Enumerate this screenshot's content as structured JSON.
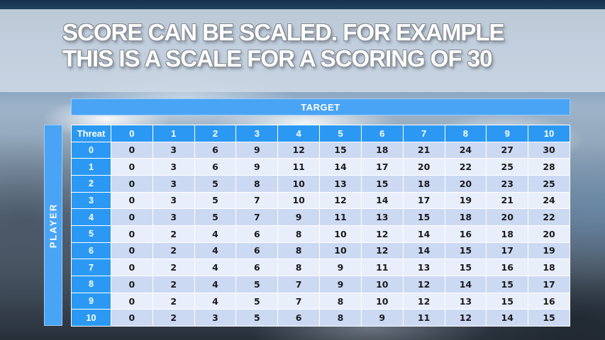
{
  "slide": {
    "title_line1": "SCORE CAN BE SCALED. FOR EXAMPLE",
    "title_line2": "THIS IS A SCALE FOR A SCORING OF 30"
  },
  "matrix": {
    "target_label": "TARGET",
    "player_label": "PLAYER",
    "corner_label": "Threat",
    "column_headers": [
      "0",
      "1",
      "2",
      "3",
      "4",
      "5",
      "6",
      "7",
      "8",
      "9",
      "10"
    ],
    "rows": [
      {
        "threat": "0",
        "values": [
          "0",
          "3",
          "6",
          "9",
          "12",
          "15",
          "18",
          "21",
          "24",
          "27",
          "30"
        ]
      },
      {
        "threat": "1",
        "values": [
          "0",
          "3",
          "6",
          "9",
          "11",
          "14",
          "17",
          "20",
          "22",
          "25",
          "28"
        ]
      },
      {
        "threat": "2",
        "values": [
          "0",
          "3",
          "5",
          "8",
          "10",
          "13",
          "15",
          "18",
          "20",
          "23",
          "25"
        ]
      },
      {
        "threat": "3",
        "values": [
          "0",
          "3",
          "5",
          "7",
          "10",
          "12",
          "14",
          "17",
          "19",
          "21",
          "24"
        ]
      },
      {
        "threat": "4",
        "values": [
          "0",
          "3",
          "5",
          "7",
          "9",
          "11",
          "13",
          "15",
          "18",
          "20",
          "22"
        ]
      },
      {
        "threat": "5",
        "values": [
          "0",
          "2",
          "4",
          "6",
          "8",
          "10",
          "12",
          "14",
          "16",
          "18",
          "20"
        ]
      },
      {
        "threat": "6",
        "values": [
          "0",
          "2",
          "4",
          "6",
          "8",
          "10",
          "12",
          "14",
          "15",
          "17",
          "19"
        ]
      },
      {
        "threat": "7",
        "values": [
          "0",
          "2",
          "4",
          "6",
          "8",
          "9",
          "11",
          "13",
          "15",
          "16",
          "18"
        ]
      },
      {
        "threat": "8",
        "values": [
          "0",
          "2",
          "4",
          "5",
          "7",
          "9",
          "10",
          "12",
          "14",
          "15",
          "17"
        ]
      },
      {
        "threat": "9",
        "values": [
          "0",
          "2",
          "4",
          "5",
          "7",
          "8",
          "10",
          "12",
          "13",
          "15",
          "16"
        ]
      },
      {
        "threat": "10",
        "values": [
          "0",
          "2",
          "3",
          "5",
          "6",
          "8",
          "9",
          "11",
          "12",
          "14",
          "15"
        ]
      }
    ]
  },
  "colors": {
    "bar_blue": "#4aa4f5",
    "header_blue": "#2b99f3",
    "row_even": "#ccd9f3",
    "row_odd": "#e9eefb",
    "cell_text": "#1b1b1b",
    "title_text": "#ffffff",
    "title_outline": "#878c93",
    "title_band": "#cdd8e4"
  }
}
